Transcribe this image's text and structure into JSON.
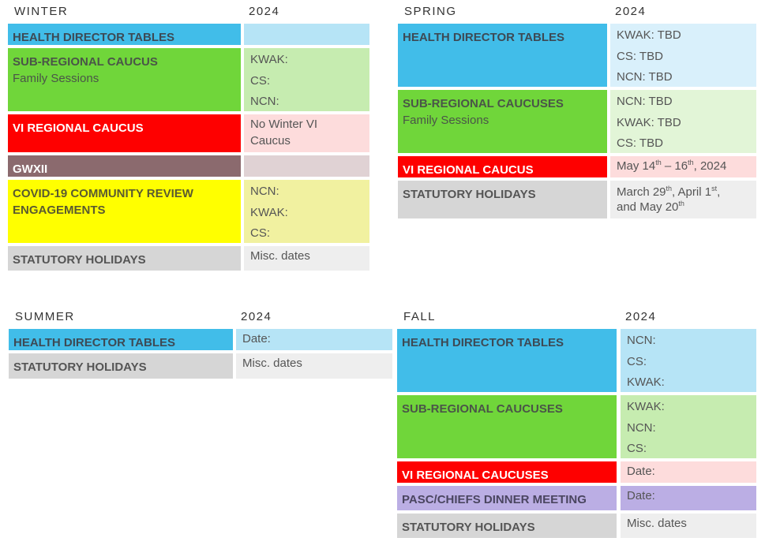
{
  "sections": [
    {
      "season": "WINTER",
      "year": "2024",
      "rows": [
        {
          "label": "HEALTH DIRECTOR TABLES",
          "label_color": "#41bde9",
          "value_color": "#b6e4f6",
          "label_text_color": "#3d4a55",
          "lines": []
        },
        {
          "label": "SUB-REGIONAL CAUCUS",
          "sublabel": "Family Sessions",
          "label_color": "#70d63a",
          "value_color": "#c6ecb0",
          "label_text_color": "#4a5548",
          "lines": [
            "KWAK:",
            "CS:",
            "NCN:"
          ]
        },
        {
          "label": "VI REGIONAL CAUCUS",
          "label_color": "#fe0000",
          "value_color": "#fddcdc",
          "label_text_color": "#ffffff",
          "lines": [
            "No Winter VI",
            "Caucus"
          ]
        },
        {
          "label": "GWXII",
          "label_color": "#8b6a6e",
          "value_color": "#e0d2d4",
          "label_text_color": "#ffffff",
          "lines": []
        },
        {
          "label": "COVID-19 COMMUNITY REVIEW ENGAGEMENTS",
          "label_color": "#ffff00",
          "value_color": "#f1f1a0",
          "label_text_color": "#5a5a30",
          "lines": [
            "NCN:",
            "KWAK:",
            "CS:"
          ]
        },
        {
          "label": "STATUTORY HOLIDAYS",
          "label_color": "#d6d6d6",
          "value_color": "#eeeeee",
          "label_text_color": "#555555",
          "lines": [
            "Misc. dates"
          ]
        }
      ]
    },
    {
      "season": "SPRING",
      "year": "2024",
      "rows": [
        {
          "label": "HEALTH DIRECTOR TABLES",
          "label_color": "#41bde9",
          "value_color": "#d9f0fb",
          "label_text_color": "#3d4a55",
          "lines": [
            "KWAK: TBD",
            "CS: TBD",
            "NCN: TBD"
          ]
        },
        {
          "label": "SUB-REGIONAL CAUCUSES",
          "sublabel": "Family Sessions",
          "label_color": "#70d63a",
          "value_color": "#e2f5d7",
          "label_text_color": "#4a5548",
          "lines": [
            "NCN: TBD",
            "KWAK: TBD",
            "CS: TBD"
          ]
        },
        {
          "label": "VI REGIONAL CAUCUS",
          "label_color": "#fe0000",
          "value_color": "#fddcdc",
          "label_text_color": "#ffffff",
          "lines": [
            [
              "May 14",
              "th",
              " – 16",
              "th",
              ", 2024"
            ]
          ]
        },
        {
          "label": "STATUTORY HOLIDAYS",
          "label_color": "#d6d6d6",
          "value_color": "#eeeeee",
          "label_text_color": "#555555",
          "lines": [
            [
              "March 29",
              "th",
              ", April 1",
              "st",
              ","
            ],
            [
              "and May 20",
              "th"
            ]
          ]
        }
      ]
    },
    {
      "season": "SUMMER",
      "year": "2024",
      "rows": [
        {
          "label": "HEALTH DIRECTOR TABLES",
          "label_color": "#41bde9",
          "value_color": "#b6e4f6",
          "label_text_color": "#3d4a55",
          "lines": [
            "Date:"
          ]
        },
        {
          "label": "STATUTORY HOLIDAYS",
          "label_color": "#d6d6d6",
          "value_color": "#eeeeee",
          "label_text_color": "#555555",
          "lines": [
            "Misc. dates"
          ]
        }
      ]
    },
    {
      "season": "FALL",
      "year": "2024",
      "rows": [
        {
          "label": "HEALTH DIRECTOR TABLES",
          "label_color": "#41bde9",
          "value_color": "#b6e4f6",
          "label_text_color": "#3d4a55",
          "lines": [
            "NCN:",
            "CS:",
            "KWAK:"
          ]
        },
        {
          "label": "SUB-REGIONAL CAUCUSES",
          "label_color": "#70d63a",
          "value_color": "#c6ecb0",
          "label_text_color": "#4a5548",
          "lines": [
            "KWAK:",
            "NCN:",
            "CS:"
          ]
        },
        {
          "label": "VI REGIONAL CAUCUSES",
          "label_color": "#fe0000",
          "value_color": "#fddcdc",
          "label_text_color": "#ffffff",
          "lines": [
            "Date:"
          ]
        },
        {
          "label": "PASC/CHIEFS DINNER MEETING",
          "label_color": "#bbaee4",
          "value_color": "#bbaee4",
          "label_text_color": "#4a4560",
          "lines": [
            "Date:"
          ]
        },
        {
          "label": "STATUTORY HOLIDAYS",
          "label_color": "#d6d6d6",
          "value_color": "#eeeeee",
          "label_text_color": "#555555",
          "lines": [
            "Misc. dates"
          ]
        }
      ]
    }
  ]
}
